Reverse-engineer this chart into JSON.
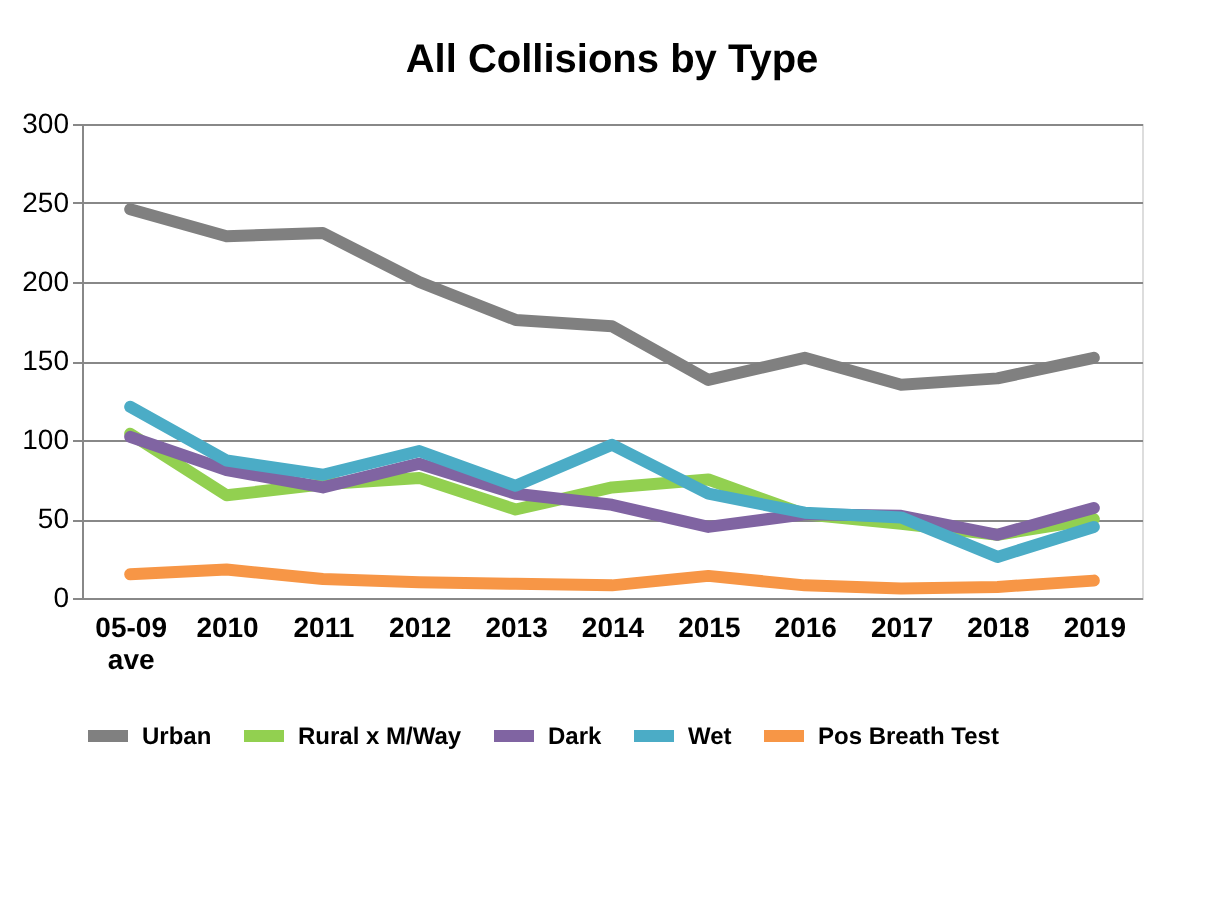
{
  "chart_data": {
    "type": "line",
    "title": "All Collisions by Type",
    "categories": [
      "05-09 ave",
      "2010",
      "2011",
      "2012",
      "2013",
      "2014",
      "2015",
      "2016",
      "2017",
      "2018",
      "2019"
    ],
    "series": [
      {
        "name": "Urban",
        "color": "#808080",
        "values": [
          246,
          229,
          231,
          200,
          176,
          172,
          138,
          152,
          135,
          139,
          152
        ]
      },
      {
        "name": "Rural x M/Way",
        "color": "#92d050",
        "values": [
          104,
          65,
          72,
          76,
          56,
          70,
          75,
          53,
          47,
          40,
          50
        ]
      },
      {
        "name": "Dark",
        "color": "#8064a2",
        "values": [
          102,
          81,
          70,
          85,
          66,
          59,
          45,
          53,
          52,
          40,
          57
        ]
      },
      {
        "name": "Wet",
        "color": "#4bacc6",
        "values": [
          121,
          87,
          78,
          93,
          71,
          97,
          66,
          54,
          51,
          26,
          45
        ]
      },
      {
        "name": "Pos Breath Test",
        "color": "#f79646",
        "values": [
          15,
          18,
          12,
          10,
          9,
          8,
          14,
          8,
          6,
          7,
          11
        ]
      }
    ],
    "ylim": [
      0,
      300
    ],
    "yticks": [
      0,
      50,
      100,
      150,
      200,
      250,
      300
    ],
    "grid": "y",
    "legend": "bottom",
    "marker": "none",
    "line_style": "solid"
  }
}
